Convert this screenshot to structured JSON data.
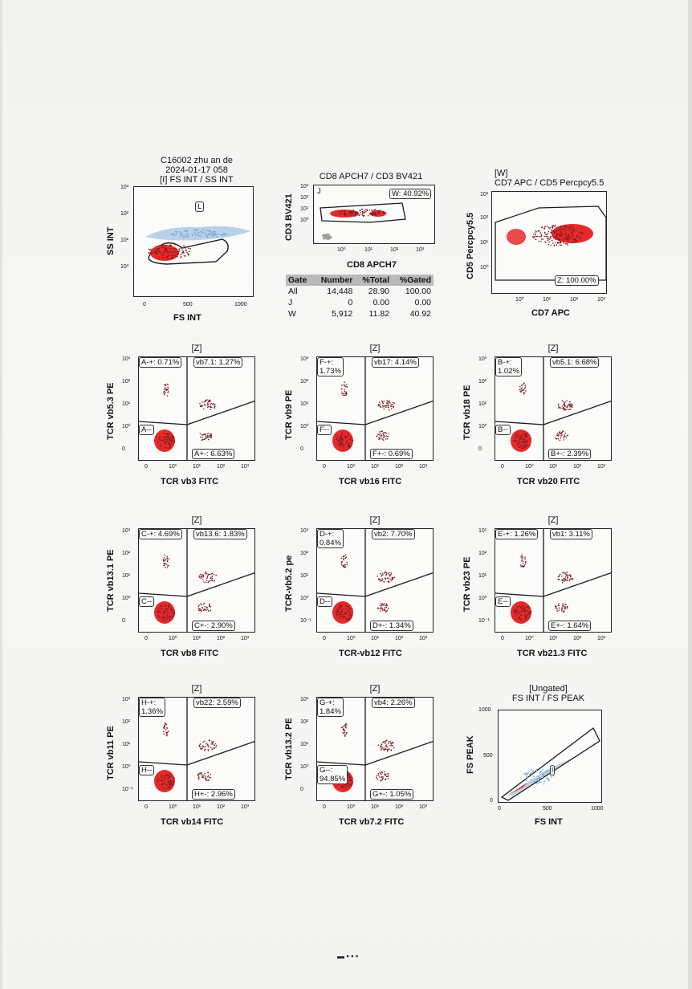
{
  "header": {
    "line1": "C16002 zhu an de",
    "line2": "2024-01-17 058",
    "line3": "[I] FS INT / SS INT"
  },
  "panels": {
    "fs_ss": {
      "ylabel": "SS INT",
      "xlabel": "FS INT",
      "yticks": [
        "10³",
        "10²",
        "10¹",
        "10⁰"
      ],
      "xticks": [
        "0",
        "500",
        "1000"
      ],
      "gate": "L"
    },
    "cd8_cd3": {
      "title": "CD8 APCH7 / CD3 BV421",
      "ylabel": "CD3 BV421",
      "xlabel": "CD8 APCH7",
      "yticks": [
        "10³",
        "10²",
        "10¹",
        "10⁰"
      ],
      "xticks": [
        "10⁰",
        "10¹",
        "10²",
        "10³"
      ],
      "gate_j": "J",
      "gate_w": "W: 40.92%"
    },
    "cd7_cd5": {
      "title1": "[W]",
      "title2": "CD7 APC / CD5 Percpcy5.5",
      "ylabel": "CD5 Percpcy5.5",
      "xlabel": "CD7 APC",
      "yticks": [
        "10³",
        "10²",
        "10¹",
        "10⁰"
      ],
      "xticks": [
        "10⁰",
        "10¹",
        "10²",
        "10³"
      ],
      "gate_z": "Z: 100.00%"
    },
    "fs_peak": {
      "title1": "[Ungated]",
      "title2": "FS INT / FS PEAK",
      "ylabel": "FS PEAK",
      "xlabel": "FS INT",
      "yticks": [
        "1000",
        "500",
        "0"
      ],
      "xticks": [
        "0",
        "500",
        "1000"
      ],
      "gate": "I"
    }
  },
  "stats_table": {
    "headers": [
      "Gate",
      "Number",
      "%Total",
      "%Gated"
    ],
    "rows": [
      [
        "All",
        "14,448",
        "28.90",
        "100.00"
      ],
      [
        "J",
        "0",
        "0.00",
        "0.00"
      ],
      [
        "W",
        "5,912",
        "11.82",
        "40.92"
      ]
    ]
  },
  "quadrants": [
    {
      "title": "[Z]",
      "ylabel": "TCR vb5.3 PE",
      "xlabel": "TCR vb3 FITC",
      "ul": "A-+: 0.71%",
      "ur": "vb7.1: 1.27%",
      "ll": "A--",
      "lr": "A+-: 6.63%",
      "yticks": [
        "10³",
        "10²",
        "10¹",
        "10⁰",
        "0"
      ],
      "xticks": [
        "0",
        "10⁰",
        "10¹",
        "10²",
        "10³"
      ]
    },
    {
      "title": "[Z]",
      "ylabel": "TCR vb9 PE",
      "xlabel": "TCR vb16 FITC",
      "ul": "F-+:\n1.73%",
      "ur": "vb17: 4.14%",
      "ll": "F--",
      "lr": "F+-: 0.69%",
      "yticks": [
        "10³",
        "10²",
        "10¹",
        "10⁰",
        "0"
      ],
      "xticks": [
        "0",
        "10⁰",
        "10¹",
        "10²",
        "10³"
      ]
    },
    {
      "title": "[Z]",
      "ylabel": "TCR vb18 PE",
      "xlabel": "TCR vb20 FITC",
      "ul": "B-+:\n1.02%",
      "ur": "vb5.1: 6.68%",
      "ll": "B--",
      "lr": "B+-: 2.39%",
      "yticks": [
        "10³",
        "10²",
        "10¹",
        "10⁰",
        "0"
      ],
      "xticks": [
        "0",
        "10⁰",
        "10¹",
        "10²",
        "10³"
      ]
    },
    {
      "title": "[Z]",
      "ylabel": "TCR vb13.1 PE",
      "xlabel": "TCR vb8 FITC",
      "ul": "C-+: 4.69%",
      "ur": "vb13.6: 1.83%",
      "ll": "C--",
      "lr": "C+-: 2.90%",
      "yticks": [
        "10³",
        "10²",
        "10¹",
        "10⁰",
        "0"
      ],
      "xticks": [
        "0",
        "10⁰",
        "10¹",
        "10²",
        "10³"
      ]
    },
    {
      "title": "[Z]",
      "ylabel": "TCR-vb5.2 pe",
      "xlabel": "TCR-vb12 FITC",
      "ul": "D-+:\n0.84%",
      "ur": "vb2: 7.70%",
      "ll": "D--",
      "lr": "D+-: 1.34%",
      "yticks": [
        "10³",
        "10²",
        "10¹",
        "10⁰",
        "10⁻¹"
      ],
      "xticks": [
        "0",
        "10⁰",
        "10¹",
        "10²",
        "10³"
      ]
    },
    {
      "title": "[Z]",
      "ylabel": "TCR vb23 PE",
      "xlabel": "TCR vb21.3 FITC",
      "ul": "E-+: 1.26%",
      "ur": "vb1: 3.11%",
      "ll": "E--",
      "lr": "E+-: 1.64%",
      "yticks": [
        "10³",
        "10²",
        "10¹",
        "10⁰",
        "10⁻¹"
      ],
      "xticks": [
        "0",
        "10⁰",
        "10¹",
        "10²",
        "10³"
      ]
    },
    {
      "title": "[Z]",
      "ylabel": "TCR vb11 PE",
      "xlabel": "TCR vb14 FITC",
      "ul": "H-+:\n1.36%",
      "ur": "vb22: 2.59%",
      "ll": "H--",
      "lr": "H+-: 2.96%",
      "yticks": [
        "10³",
        "10²",
        "10¹",
        "10⁰",
        "10⁻¹"
      ],
      "xticks": [
        "0",
        "10⁰",
        "10¹",
        "10²",
        "10³"
      ]
    },
    {
      "title": "[Z]",
      "ylabel": "TCR vb13.2 PE",
      "xlabel": "TCR vb7.2 FITC",
      "ul": "G-+:\n1.84%",
      "ur": "vb4: 2.26%",
      "ll": "G--:\n94.85%",
      "lr": "G+-: 1.05%",
      "yticks": [
        "10³",
        "10²",
        "10¹",
        "10⁰",
        "0"
      ],
      "xticks": [
        "0",
        "10⁰",
        "10¹",
        "10²",
        "10³"
      ]
    }
  ],
  "colors": {
    "event_core": "#e8292a",
    "event_dot": "#7a1e22",
    "event_blue": "#7aa9d4",
    "event_grey": "#9a9a9a",
    "gate_line": "#1a1a1a"
  }
}
